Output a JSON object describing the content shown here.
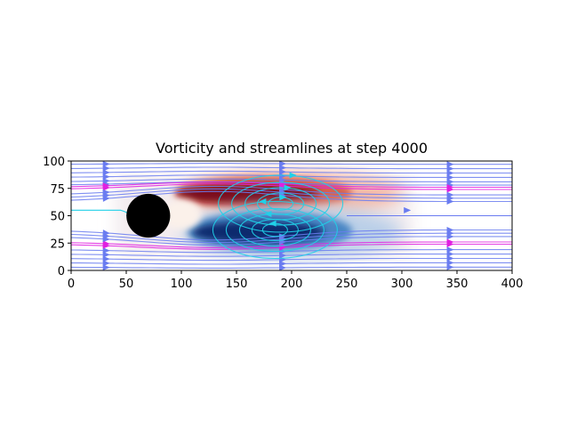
{
  "chart_data": {
    "type": "heatmap",
    "title": "Vorticity and streamlines at step 4000",
    "xlabel": "",
    "ylabel": "",
    "xlim": [
      0,
      400
    ],
    "ylim": [
      0,
      100
    ],
    "xticks": [
      0,
      50,
      100,
      150,
      200,
      250,
      300,
      350,
      400
    ],
    "yticks": [
      0,
      25,
      50,
      75,
      100
    ],
    "grid": false,
    "obstacle": {
      "shape": "circle",
      "center": [
        70,
        50
      ],
      "radius": 20,
      "color": "#000000"
    },
    "colormap": "diverging red (positive) / blue (negative)",
    "vorticity_regions": [
      {
        "sign": "positive",
        "center": [
          160,
          70
        ],
        "extent_x": [
          100,
          300
        ],
        "color": "#7a0a1e"
      },
      {
        "sign": "negative",
        "center": [
          170,
          35
        ],
        "extent_x": [
          100,
          300
        ],
        "color": "#0a2a6e"
      }
    ],
    "streamline_colors": {
      "free_stream": "#6a7cf0",
      "outer_wake": "#e020e0",
      "recirculation": "#20d0e8"
    },
    "recirculation_vortices": [
      {
        "center": [
          190,
          61
        ],
        "rotation": "clockwise"
      },
      {
        "center": [
          185,
          37
        ],
        "rotation": "counterclockwise"
      }
    ]
  }
}
